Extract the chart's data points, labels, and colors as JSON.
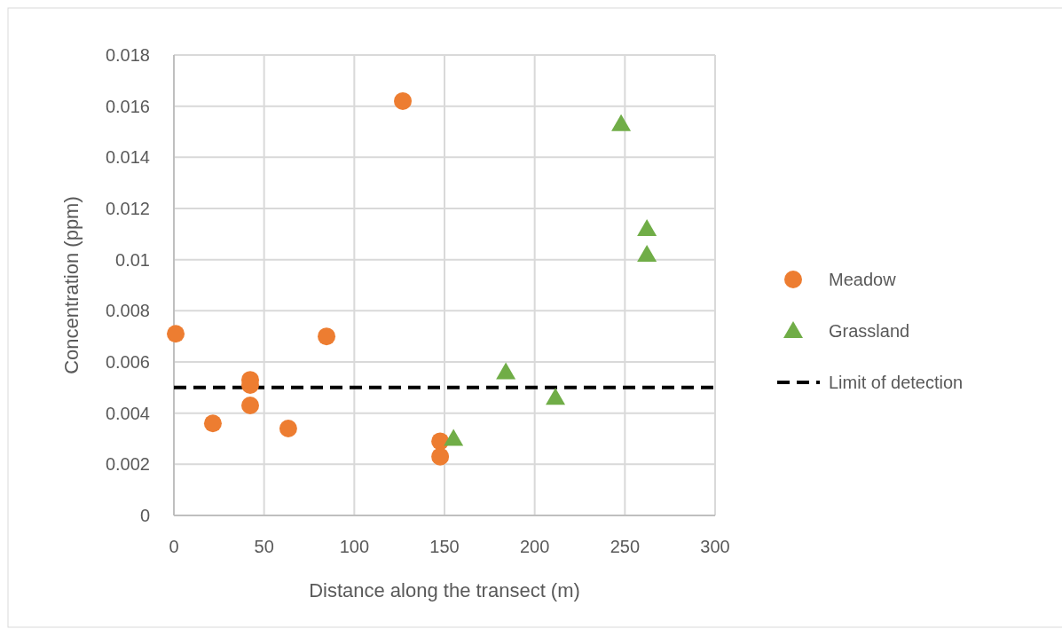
{
  "chart_data": {
    "type": "scatter",
    "xlabel": "Distance along the transect (m)",
    "ylabel": "Concentration (ppm)",
    "xlim": [
      0,
      300
    ],
    "xticks": [
      0,
      50,
      100,
      150,
      200,
      250,
      300
    ],
    "ylim": [
      0,
      0.018
    ],
    "yticks": [
      0,
      0.002,
      0.004,
      0.006,
      0.008,
      0.01,
      0.012,
      0.014,
      0.016,
      0.018
    ],
    "grid": true,
    "legend": "right",
    "series": [
      {
        "name": "Meadow",
        "color": "#ed7d31",
        "marker": "circle",
        "x": [
          1,
          21.6,
          42.3,
          42.3,
          42.3,
          63.4,
          84.6,
          126.9,
          147.6,
          147.6
        ],
        "values": [
          0.0071,
          0.0036,
          0.0053,
          0.0051,
          0.0043,
          0.0034,
          0.007,
          0.0162,
          0.0029,
          0.0023
        ]
      },
      {
        "name": "Grassland",
        "color": "#70ad47",
        "marker": "triangle",
        "x": [
          155,
          184,
          211.5,
          247.9,
          262.2,
          262.2
        ],
        "values": [
          0.003,
          0.0056,
          0.0046,
          0.0153,
          0.0112,
          0.0102
        ]
      },
      {
        "name": "Limit of detection",
        "type": "line",
        "color": "#000000",
        "line_style": "dashed",
        "marker": "none",
        "x": [
          0,
          300
        ],
        "values": [
          0.005,
          0.005
        ]
      }
    ]
  }
}
